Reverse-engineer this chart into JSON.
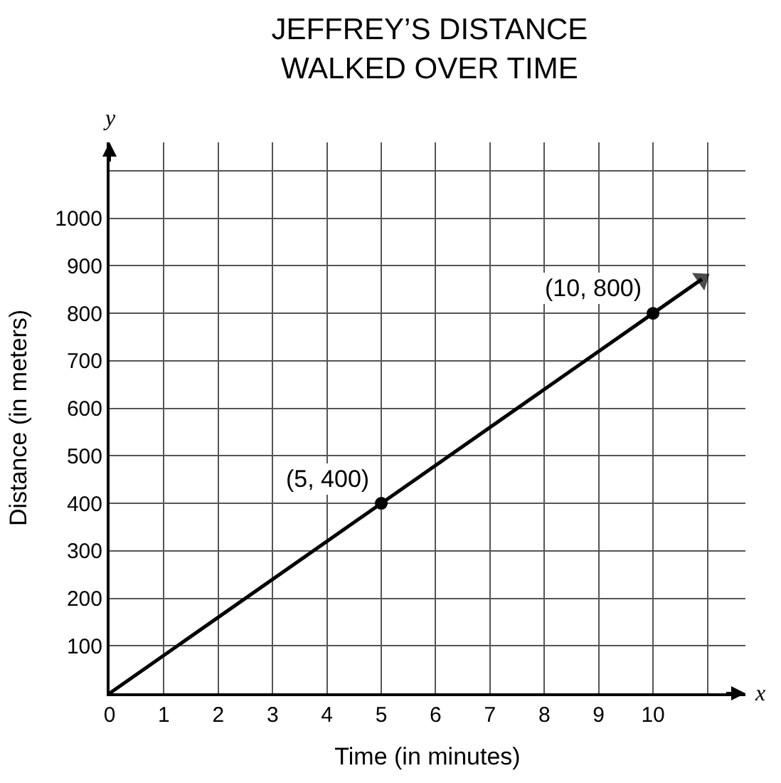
{
  "chart_data": {
    "type": "line",
    "title": "JEFFREY’S DISTANCE\nWALKED OVER TIME",
    "xlabel": "Time (in minutes)",
    "ylabel": "Distance (in meters)",
    "series": [
      {
        "color": "#000000",
        "x": [
          0,
          10.9
        ],
        "values": [
          0,
          872
        ],
        "marker": "triangle"
      },
      {
        "type": "scatter",
        "color": "#000000",
        "x": [
          5,
          10
        ],
        "values": [
          400,
          800
        ],
        "marker": "circle"
      }
    ],
    "annotations": [
      {
        "text": "(5, 400)",
        "x": 5,
        "y": 400
      },
      {
        "text": "(10, 800)",
        "x": 10,
        "y": 800
      },
      "x",
      "y"
    ],
    "xlim": [
      0,
      11.7
    ],
    "ylim": [
      0,
      1160
    ],
    "xticks": [
      0,
      1,
      2,
      3,
      4,
      5,
      6,
      7,
      8,
      9,
      10,
      {
        "value": 11,
        "label": null
      }
    ],
    "yticks": [
      100,
      200,
      300,
      400,
      500,
      600,
      700,
      800,
      900,
      1000,
      {
        "value": 1100,
        "label": null
      }
    ],
    "grid": true
  }
}
